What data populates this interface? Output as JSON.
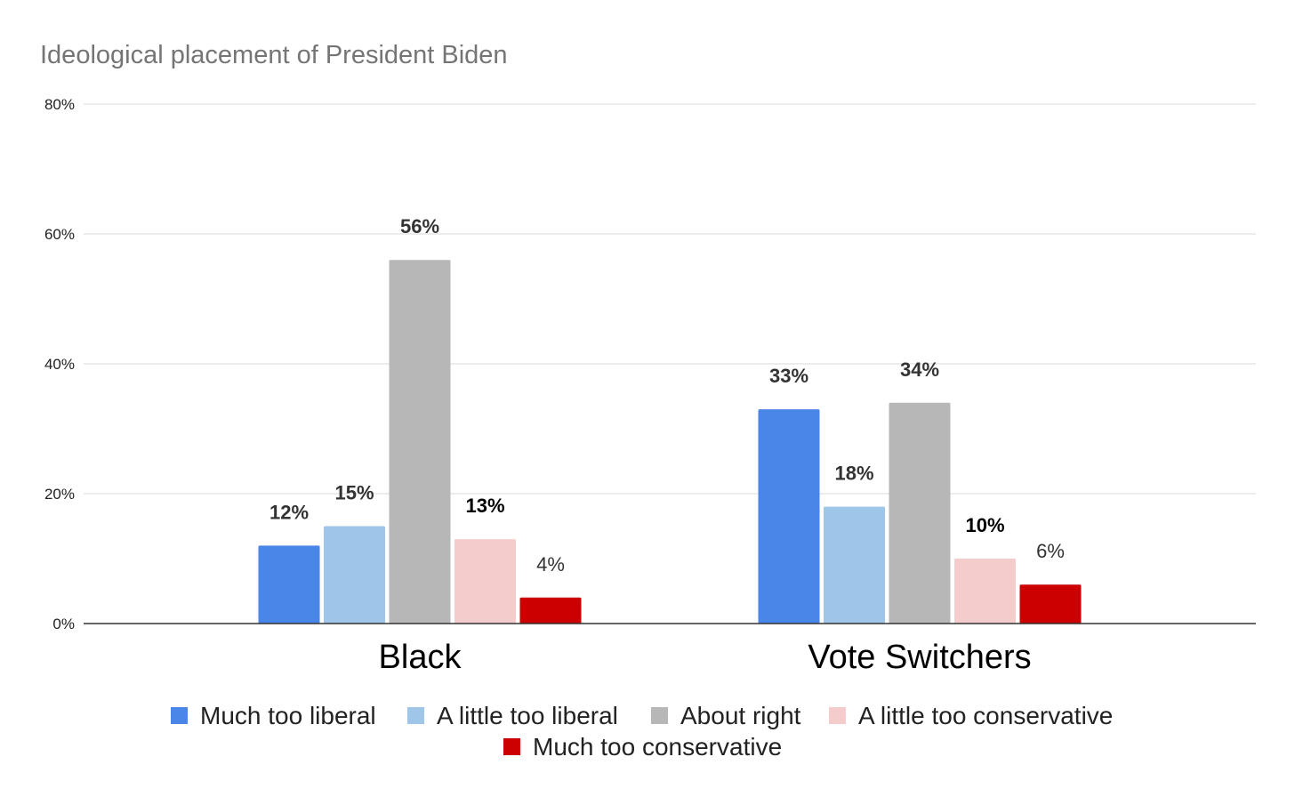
{
  "chart_data": {
    "type": "bar",
    "title": "Ideological placement of President Biden",
    "xlabel": "",
    "ylabel": "",
    "categories": [
      "Black",
      "Vote Switchers"
    ],
    "series": [
      {
        "name": "Much too liberal",
        "color": "#4a86e8",
        "values": [
          12,
          33
        ],
        "labels": [
          "12%",
          "33%"
        ]
      },
      {
        "name": "A little too liberal",
        "color": "#9fc5e8",
        "values": [
          15,
          18
        ],
        "labels": [
          "15%",
          "18%"
        ]
      },
      {
        "name": "About right",
        "color": "#b7b7b7",
        "values": [
          56,
          34
        ],
        "labels": [
          "56%",
          "34%"
        ]
      },
      {
        "name": "A little too conservative",
        "color": "#f4cccc",
        "values": [
          13,
          10
        ],
        "labels": [
          "13%",
          "10%"
        ]
      },
      {
        "name": "Much too conservative",
        "color": "#cc0000",
        "values": [
          4,
          6
        ],
        "labels": [
          "4%",
          "6%"
        ]
      }
    ],
    "ylim": [
      0,
      80
    ],
    "yticks": [
      0,
      20,
      40,
      60,
      80
    ],
    "ytick_labels": [
      "0%",
      "20%",
      "40%",
      "60%",
      "80%"
    ],
    "grid": true,
    "legend_position": "bottom"
  }
}
